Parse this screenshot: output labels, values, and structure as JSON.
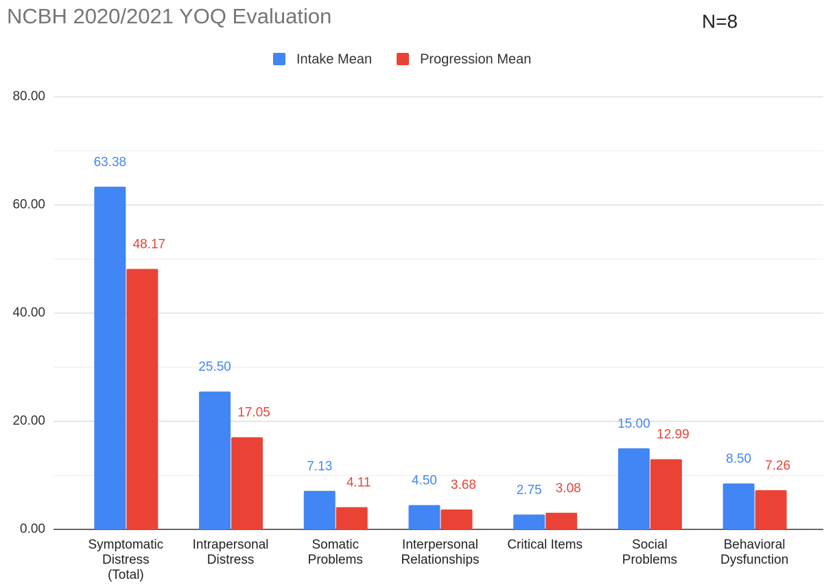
{
  "chart_data": {
    "type": "bar",
    "title": "NCBH 2020/2021 YOQ Evaluation",
    "annotation": "N=8",
    "categories": [
      [
        "Symptomatic",
        "Distress",
        "(Total)"
      ],
      [
        "Intrapersonal",
        "Distress"
      ],
      [
        "Somatic",
        "Problems"
      ],
      [
        "Interpersonal",
        "Relationships"
      ],
      [
        "Critical Items"
      ],
      [
        "Social",
        "Problems"
      ],
      [
        "Behavioral",
        "Dysfunction"
      ]
    ],
    "series": [
      {
        "name": "Intake Mean",
        "color": "#4285f4",
        "values": [
          63.38,
          25.5,
          7.13,
          4.5,
          2.75,
          15,
          8.5
        ],
        "value_labels": [
          "63.38",
          "25.50",
          "7.13",
          "4.50",
          "2.75",
          "15.00",
          "8.50"
        ]
      },
      {
        "name": "Progression Mean",
        "color": "#ea4335",
        "values": [
          48.17,
          17.05,
          4.11,
          3.68,
          3.08,
          12.99,
          7.26
        ],
        "value_labels": [
          "48.17",
          "17.05",
          "4.11",
          "3.68",
          "3.08",
          "12.99",
          "7.26"
        ]
      }
    ],
    "ylim": [
      0,
      80
    ],
    "yticks": [
      {
        "value": 0,
        "label": "0.00"
      },
      {
        "value": 20,
        "label": "20.00"
      },
      {
        "value": 40,
        "label": "40.00"
      },
      {
        "value": 60,
        "label": "60.00"
      },
      {
        "value": 80,
        "label": "80.00"
      }
    ],
    "minor_yticks": [
      10,
      30,
      50,
      70
    ],
    "grid": true,
    "legend": "top"
  }
}
